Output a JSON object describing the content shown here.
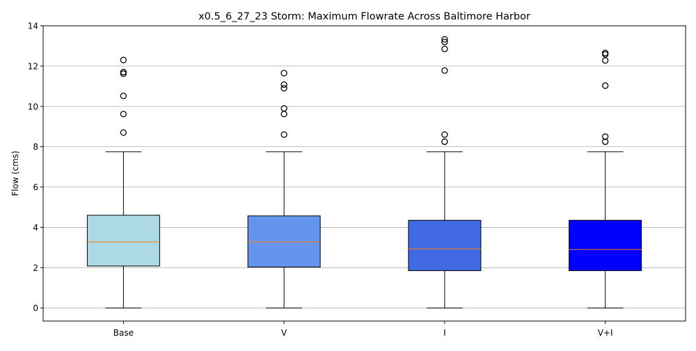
{
  "chart_data": {
    "type": "box",
    "title": "x0.5_6_27_23 Storm: Maximum Flowrate Across Baltimore Harbor",
    "xlabel": "",
    "ylabel": "Flow (cms)",
    "ylim": [
      -0.65,
      14
    ],
    "yticks": [
      0,
      2,
      4,
      6,
      8,
      10,
      12,
      14
    ],
    "grid": "y",
    "categories": [
      "Base",
      "V",
      "I",
      "V+I"
    ],
    "series": [
      {
        "category": "Base",
        "color": "#add8e6",
        "whisker_low": 0.0,
        "q1": 2.08,
        "median": 3.28,
        "q3": 4.6,
        "whisker_high": 7.75,
        "outliers": [
          8.7,
          9.62,
          10.52,
          11.62,
          11.7,
          12.3
        ]
      },
      {
        "category": "V",
        "color": "#6495ed",
        "whisker_low": 0.0,
        "q1": 2.03,
        "median": 3.28,
        "q3": 4.57,
        "whisker_high": 7.75,
        "outliers": [
          8.6,
          9.62,
          9.9,
          10.9,
          11.08,
          11.65
        ]
      },
      {
        "category": "I",
        "color": "#4169e1",
        "whisker_low": 0.0,
        "q1": 1.85,
        "median": 2.93,
        "q3": 4.35,
        "whisker_high": 7.75,
        "outliers": [
          8.25,
          8.6,
          11.78,
          12.85,
          13.2,
          13.33
        ]
      },
      {
        "category": "V+I",
        "color": "#0000ff",
        "whisker_low": 0.0,
        "q1": 1.85,
        "median": 2.9,
        "q3": 4.35,
        "whisker_high": 7.75,
        "outliers": [
          8.25,
          8.5,
          11.03,
          12.28,
          12.58,
          12.65
        ]
      }
    ],
    "median_color": "#ff7f0e"
  }
}
